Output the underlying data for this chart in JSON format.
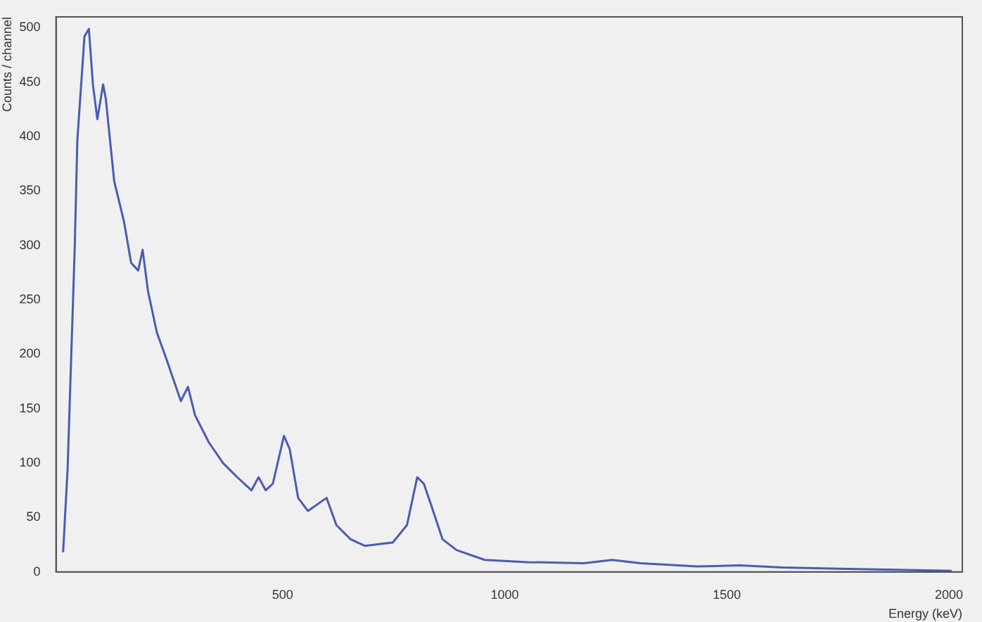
{
  "chart_data": {
    "type": "line",
    "xlabel": "Energy (keV)",
    "ylabel": "Counts / channel",
    "x": [
      6,
      16,
      32,
      38,
      54,
      64,
      73,
      83,
      96,
      102,
      121,
      143,
      159,
      175,
      185,
      197,
      217,
      239,
      271,
      287,
      303,
      334,
      366,
      398,
      430,
      446,
      462,
      478,
      503,
      516,
      535,
      557,
      599,
      621,
      653,
      685,
      748,
      780,
      803,
      818,
      834,
      860,
      892,
      955,
      1051,
      1178,
      1242,
      1306,
      1433,
      1529,
      1624,
      1752,
      1879,
      2006
    ],
    "series": [
      {
        "color": "#4a5cb0",
        "values": [
          18,
          94,
          296,
          397,
          492,
          499,
          448,
          416,
          448,
          435,
          359,
          322,
          284,
          277,
          296,
          258,
          220,
          195,
          157,
          170,
          144,
          119,
          100,
          87,
          75,
          87,
          75,
          81,
          125,
          113,
          68,
          56,
          68,
          43,
          30,
          24,
          27,
          43,
          87,
          81,
          62,
          30,
          20,
          11,
          9,
          8,
          11,
          8,
          5,
          6,
          4,
          3,
          2,
          1
        ]
      }
    ],
    "xlim": [
      -10,
      2030
    ],
    "xticks": [
      500,
      1000,
      1500,
      2000
    ],
    "ylim": [
      0,
      510
    ],
    "yticks": [
      0,
      50,
      100,
      150,
      200,
      250,
      300,
      350,
      400,
      450,
      500
    ],
    "grid": false,
    "legend": false,
    "marker": "none",
    "line_style": "solid"
  }
}
